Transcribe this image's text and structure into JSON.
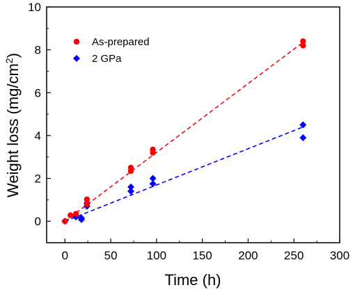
{
  "chart_data": {
    "type": "scatter",
    "xlabel": "Time (h)",
    "ylabel_main": "Weight loss (mg/cm",
    "ylabel_sup": "2",
    "ylabel_close": ")",
    "xlim": [
      -20,
      300
    ],
    "ylim": [
      -1,
      10
    ],
    "xticks": [
      0,
      50,
      100,
      150,
      200,
      250,
      300
    ],
    "yticks": [
      0,
      2,
      4,
      6,
      8,
      10
    ],
    "legend_position": "top-left",
    "series": [
      {
        "name": "As-prepared",
        "color": "#ff0000",
        "marker": "circle",
        "points": [
          [
            0,
            0.0
          ],
          [
            6,
            0.28
          ],
          [
            12,
            0.35
          ],
          [
            24,
            1.02
          ],
          [
            24,
            0.8
          ],
          [
            72,
            2.5
          ],
          [
            72,
            2.35
          ],
          [
            96,
            3.35
          ],
          [
            96,
            3.2
          ],
          [
            260,
            8.4
          ],
          [
            260,
            8.2
          ]
        ],
        "fit": [
          [
            0,
            0.0
          ],
          [
            260,
            8.35
          ]
        ]
      },
      {
        "name": "2 GPa",
        "color": "#0000ff",
        "marker": "diamond",
        "points": [
          [
            0,
            0.0
          ],
          [
            12,
            0.2
          ],
          [
            18,
            0.15
          ],
          [
            18,
            0.08
          ],
          [
            24,
            0.85
          ],
          [
            24,
            0.7
          ],
          [
            72,
            1.6
          ],
          [
            72,
            1.4
          ],
          [
            96,
            2.0
          ],
          [
            96,
            1.75
          ],
          [
            260,
            4.5
          ],
          [
            260,
            3.9
          ]
        ],
        "fit": [
          [
            0,
            0.0
          ],
          [
            260,
            4.4
          ]
        ]
      }
    ]
  }
}
